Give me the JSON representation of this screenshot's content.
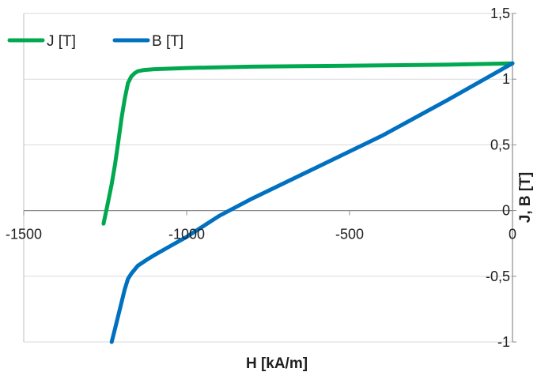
{
  "chart_data": {
    "type": "line",
    "xlabel": "H [kA/m]",
    "ylabel": "J, B [T]",
    "xlim": [
      -1500,
      0
    ],
    "ylim": [
      -1,
      1.5
    ],
    "x_ticks": [
      -1500,
      -1000,
      -500,
      0
    ],
    "x_tick_labels": [
      "-1500",
      "-1000",
      "-500",
      "0"
    ],
    "y_ticks": [
      -1,
      -0.5,
      0,
      0.5,
      1,
      1.5
    ],
    "y_tick_labels": [
      "-1",
      "-0,5",
      "0",
      "0,5",
      "1",
      "1,5"
    ],
    "grid": "horizontal",
    "legend": "top-left",
    "series": [
      {
        "name": "J [T]",
        "color": "#00a94f",
        "x": [
          -1255,
          -1245,
          -1230,
          -1220,
          -1210,
          -1200,
          -1190,
          -1180,
          -1170,
          -1160,
          -1150,
          -1130,
          -1100,
          -1050,
          -1000,
          -900,
          -800,
          -600,
          -400,
          -200,
          0
        ],
        "y": [
          -0.1,
          0.02,
          0.2,
          0.35,
          0.52,
          0.7,
          0.85,
          0.97,
          1.02,
          1.045,
          1.06,
          1.07,
          1.076,
          1.08,
          1.085,
          1.09,
          1.095,
          1.1,
          1.105,
          1.11,
          1.12
        ]
      },
      {
        "name": "B [T]",
        "color": "#0070c0",
        "x": [
          -1230,
          -1220,
          -1210,
          -1200,
          -1190,
          -1180,
          -1170,
          -1160,
          -1150,
          -1120,
          -1100,
          -1050,
          -1000,
          -950,
          -900,
          -800,
          -600,
          -400,
          -200,
          0
        ],
        "y": [
          -1.0,
          -0.9,
          -0.8,
          -0.7,
          -0.6,
          -0.52,
          -0.48,
          -0.45,
          -0.42,
          -0.37,
          -0.34,
          -0.27,
          -0.2,
          -0.12,
          -0.04,
          0.09,
          0.33,
          0.57,
          0.84,
          1.12
        ]
      }
    ]
  }
}
